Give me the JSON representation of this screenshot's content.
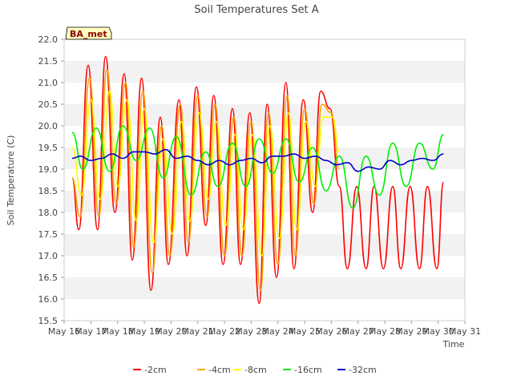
{
  "chart_data": {
    "type": "line",
    "title": "Soil Temperatures Set A",
    "xlabel": "Time",
    "ylabel": "Soil Temperature (C)",
    "station_label": "BA_met",
    "ylim": [
      15.5,
      22.0
    ],
    "xlim": [
      16,
      31
    ],
    "y_ticks": [
      "15.5",
      "16.0",
      "16.5",
      "17.0",
      "17.5",
      "18.0",
      "18.5",
      "19.0",
      "19.5",
      "20.0",
      "20.5",
      "21.0",
      "21.5",
      "22.0"
    ],
    "x_ticks": [
      {
        "day": 16,
        "label": "May 16"
      },
      {
        "day": 17,
        "label": "May 17"
      },
      {
        "day": 18,
        "label": "May 18"
      },
      {
        "day": 19,
        "label": "May 19"
      },
      {
        "day": 20,
        "label": "May 20"
      },
      {
        "day": 21,
        "label": "May 21"
      },
      {
        "day": 22,
        "label": "May 22"
      },
      {
        "day": 23,
        "label": "May 23"
      },
      {
        "day": 24,
        "label": "May 24"
      },
      {
        "day": 25,
        "label": "May 25"
      },
      {
        "day": 26,
        "label": "May 26"
      },
      {
        "day": 27,
        "label": "May 27"
      },
      {
        "day": 28,
        "label": "May 28"
      },
      {
        "day": 29,
        "label": "May 29"
      },
      {
        "day": 30,
        "label": "May 30"
      },
      {
        "day": 31,
        "label": "May 31"
      }
    ],
    "grid": "horizontal bands",
    "legend_position": "bottom",
    "series": [
      {
        "name": "-2cm",
        "color": "#ff0000",
        "x": [
          16.3,
          16.55,
          16.9,
          17.25,
          17.55,
          17.9,
          18.25,
          18.55,
          18.9,
          19.25,
          19.6,
          19.9,
          20.3,
          20.6,
          20.95,
          21.3,
          21.6,
          21.95,
          22.3,
          22.6,
          22.95,
          23.3,
          23.6,
          23.95,
          24.3,
          24.6,
          24.95,
          25.3,
          25.6,
          25.95,
          26.3,
          26.6,
          26.95,
          27.3,
          27.6,
          27.95,
          28.3,
          28.6,
          28.95,
          29.3,
          29.6,
          29.95,
          30.2
        ],
        "y": [
          18.8,
          17.6,
          21.4,
          17.6,
          21.6,
          18.0,
          21.2,
          16.9,
          21.1,
          16.2,
          20.2,
          16.8,
          20.6,
          17.0,
          20.9,
          17.7,
          20.7,
          16.8,
          20.4,
          16.8,
          20.3,
          15.9,
          20.5,
          16.5,
          21.0,
          16.7,
          20.6,
          18.0,
          20.8,
          20.4,
          18.6,
          16.7,
          18.6,
          16.7,
          18.6,
          16.7,
          18.6,
          16.7,
          18.6,
          16.7,
          18.6,
          16.7,
          18.7
        ]
      },
      {
        "name": "-4cm",
        "color": "#ffa500",
        "x": [
          16.3,
          16.6,
          16.95,
          17.3,
          17.6,
          17.95,
          18.3,
          18.6,
          18.95,
          19.3,
          19.65,
          19.95,
          20.35,
          20.65,
          21.0,
          21.35,
          21.65,
          22.0,
          22.35,
          22.65,
          23.0,
          23.35,
          23.65,
          24.0,
          24.35,
          24.65,
          25.0,
          25.35,
          25.65,
          26.0,
          26.3
        ],
        "y": [
          18.8,
          17.9,
          21.1,
          17.9,
          21.3,
          18.2,
          21.0,
          17.2,
          20.8,
          16.6,
          20.0,
          17.0,
          20.5,
          17.3,
          20.7,
          17.9,
          20.5,
          17.0,
          20.2,
          17.0,
          20.1,
          16.2,
          20.3,
          16.8,
          20.7,
          17.0,
          20.4,
          18.2,
          20.5,
          20.3,
          19.0
        ]
      },
      {
        "name": "-8cm",
        "color": "#ffff00",
        "x": [
          16.3,
          16.65,
          17.0,
          17.35,
          17.7,
          18.0,
          18.35,
          18.7,
          19.0,
          19.35,
          19.7,
          20.05,
          20.4,
          20.7,
          21.05,
          21.4,
          21.7,
          22.05,
          22.4,
          22.7,
          23.05,
          23.4,
          23.7,
          24.05,
          24.4,
          24.7,
          25.05,
          25.4,
          25.7,
          26.05,
          26.3
        ],
        "y": [
          19.5,
          18.4,
          20.6,
          18.3,
          20.8,
          18.6,
          20.6,
          17.8,
          20.4,
          17.3,
          19.7,
          17.5,
          20.1,
          17.8,
          20.3,
          18.3,
          20.1,
          17.7,
          19.8,
          17.6,
          19.8,
          17.0,
          20.0,
          17.4,
          20.3,
          17.6,
          20.1,
          18.6,
          20.2,
          20.2,
          19.4
        ]
      },
      {
        "name": "-16cm",
        "color": "#00ee00",
        "x": [
          16.3,
          16.7,
          17.2,
          17.7,
          18.2,
          18.7,
          19.2,
          19.7,
          20.2,
          20.75,
          21.3,
          21.75,
          22.3,
          22.8,
          23.3,
          23.8,
          24.3,
          24.8,
          25.3,
          25.8,
          26.3,
          26.8,
          27.3,
          27.8,
          28.3,
          28.8,
          29.3,
          29.8,
          30.2
        ],
        "y": [
          19.85,
          19.0,
          19.95,
          18.95,
          20.0,
          19.2,
          19.95,
          18.8,
          19.75,
          18.4,
          19.4,
          18.6,
          19.6,
          18.6,
          19.7,
          18.9,
          19.7,
          18.7,
          19.5,
          18.5,
          19.3,
          18.1,
          19.3,
          18.4,
          19.6,
          18.6,
          19.6,
          19.0,
          19.8
        ]
      },
      {
        "name": "-32cm",
        "color": "#0000cc",
        "x": [
          16.3,
          16.6,
          17.0,
          17.4,
          17.8,
          18.2,
          18.6,
          19.0,
          19.4,
          19.8,
          20.2,
          20.6,
          21.0,
          21.4,
          21.8,
          22.2,
          22.6,
          23.0,
          23.4,
          23.8,
          24.2,
          24.6,
          25.0,
          25.4,
          25.8,
          26.2,
          26.6,
          27.0,
          27.4,
          27.8,
          28.2,
          28.6,
          29.0,
          29.4,
          29.8,
          30.2
        ],
        "y": [
          19.25,
          19.3,
          19.2,
          19.25,
          19.35,
          19.25,
          19.4,
          19.4,
          19.35,
          19.45,
          19.25,
          19.3,
          19.2,
          19.1,
          19.2,
          19.1,
          19.2,
          19.25,
          19.15,
          19.3,
          19.3,
          19.35,
          19.25,
          19.3,
          19.2,
          19.1,
          19.15,
          18.95,
          19.05,
          19.0,
          19.2,
          19.1,
          19.2,
          19.25,
          19.2,
          19.35
        ]
      }
    ]
  }
}
